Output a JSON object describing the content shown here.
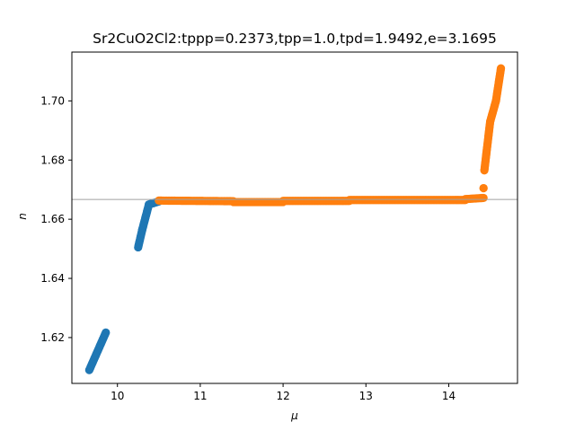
{
  "chart_data": {
    "type": "scatter",
    "title": "Sr2CuO2Cl2:tppp=0.2373,tpp=1.0,tpd=1.9492,e=3.1695",
    "xlabel": "μ",
    "ylabel": "n",
    "xlim": [
      9.45,
      14.83
    ],
    "ylim": [
      1.6045,
      1.7165
    ],
    "xticks": [
      10,
      11,
      12,
      13,
      14
    ],
    "yticks": [
      1.62,
      1.64,
      1.66,
      1.68,
      1.7
    ],
    "xtick_labels": [
      "10",
      "11",
      "12",
      "13",
      "14"
    ],
    "ytick_labels": [
      "1.62",
      "1.64",
      "1.66",
      "1.68",
      "1.70"
    ],
    "reference_line_y": 1.6667,
    "grid": false,
    "series": [
      {
        "color": "#1f77b4",
        "segments": [
          {
            "x_start": 9.66,
            "x_end": 9.86,
            "y_start": 1.609,
            "y_end": 1.6217
          },
          {
            "x_start": 10.25,
            "x_end": 10.3,
            "y_start": 1.6505,
            "y_end": 1.6565
          },
          {
            "x_start": 10.3,
            "x_end": 10.38,
            "y_start": 1.6565,
            "y_end": 1.665
          },
          {
            "x_start": 10.38,
            "x_end": 10.5,
            "y_start": 1.665,
            "y_end": 1.666
          }
        ]
      },
      {
        "color": "#ff7f0e",
        "segments": [
          {
            "x_start": 10.5,
            "x_end": 11.4,
            "y_start": 1.6663,
            "y_end": 1.6661
          },
          {
            "x_start": 11.4,
            "x_end": 12.0,
            "y_start": 1.6658,
            "y_end": 1.6658
          },
          {
            "x_start": 12.0,
            "x_end": 12.8,
            "y_start": 1.6662,
            "y_end": 1.6662
          },
          {
            "x_start": 12.8,
            "x_end": 14.2,
            "y_start": 1.6665,
            "y_end": 1.6665
          },
          {
            "x_start": 14.2,
            "x_end": 14.42,
            "y_start": 1.6668,
            "y_end": 1.6672
          },
          {
            "x_start": 14.42,
            "x_end": 14.42,
            "y_start": 1.6705,
            "y_end": 1.6705
          },
          {
            "x_start": 14.43,
            "x_end": 14.5,
            "y_start": 1.6765,
            "y_end": 1.693
          },
          {
            "x_start": 14.5,
            "x_end": 14.57,
            "y_start": 1.693,
            "y_end": 1.7
          },
          {
            "x_start": 14.57,
            "x_end": 14.63,
            "y_start": 1.7,
            "y_end": 1.711
          }
        ]
      }
    ]
  }
}
